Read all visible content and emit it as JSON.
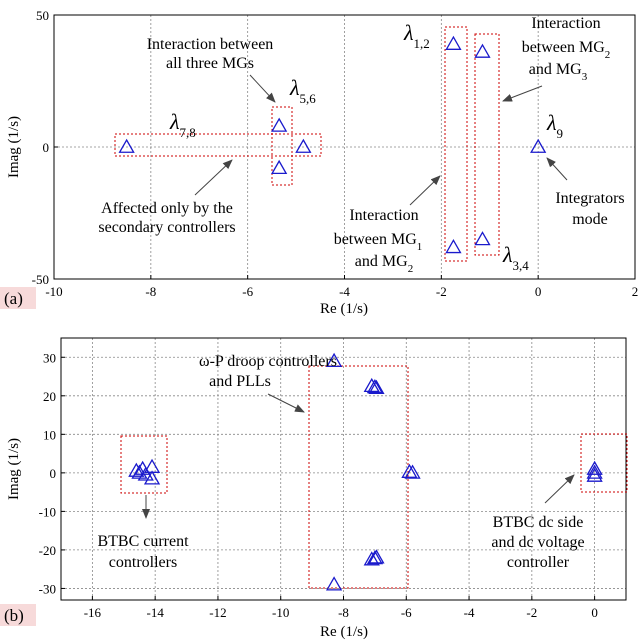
{
  "chart_data": [
    {
      "type": "scatter",
      "panel_tag": "(a)",
      "xlabel": "Re (1/s)",
      "ylabel": "Imag (1/s)",
      "xlim": [
        -10,
        2
      ],
      "ylim": [
        -50,
        50
      ],
      "xticks": [
        -10,
        -8,
        -6,
        -4,
        -2,
        0,
        2
      ],
      "yticks": [
        -50,
        0,
        50
      ],
      "grid": true,
      "marker": "triangle",
      "marker_color": "#1a1acc",
      "box_color": "#cc0000",
      "points": [
        {
          "x": -8.5,
          "y": 0
        },
        {
          "x": -5.35,
          "y": 8
        },
        {
          "x": -5.35,
          "y": -8
        },
        {
          "x": -4.85,
          "y": 0
        },
        {
          "x": -1.75,
          "y": 39
        },
        {
          "x": -1.75,
          "y": -38
        },
        {
          "x": -1.15,
          "y": 36
        },
        {
          "x": -1.15,
          "y": -35
        },
        {
          "x": 0,
          "y": 0
        }
      ],
      "eigen_labels": [
        {
          "base": "λ",
          "sub": "7,8"
        },
        {
          "base": "λ",
          "sub": "5,6"
        },
        {
          "base": "λ",
          "sub": "1,2"
        },
        {
          "base": "λ",
          "sub": "3,4"
        },
        {
          "base": "λ",
          "sub": "9"
        }
      ],
      "annotations": [
        {
          "lines": [
            "Interaction between",
            "all three MGs"
          ]
        },
        {
          "lines": [
            "Affected only by the",
            "secondary controllers"
          ]
        },
        {
          "lines": [
            "Interaction",
            "between MG",
            "and MG"
          ],
          "subs": [
            "",
            "1",
            "2"
          ]
        },
        {
          "lines": [
            "Interaction",
            "between MG",
            "and MG"
          ],
          "subs": [
            "",
            "2",
            "3"
          ]
        },
        {
          "lines": [
            "Integrators",
            "mode"
          ]
        }
      ]
    },
    {
      "type": "scatter",
      "panel_tag": "(b)",
      "xlabel": "Re (1/s)",
      "ylabel": "Imag (1/s)",
      "xlim": [
        -17,
        1
      ],
      "ylim": [
        -33,
        35
      ],
      "xticks": [
        -16,
        -14,
        -12,
        -10,
        -8,
        -6,
        -4,
        -2,
        0
      ],
      "yticks": [
        -30,
        -20,
        -10,
        0,
        10,
        20,
        30
      ],
      "grid": true,
      "marker": "triangle",
      "marker_color": "#1a1acc",
      "box_color": "#cc0000",
      "points": [
        {
          "x": -14.6,
          "y": 0.5
        },
        {
          "x": -14.4,
          "y": 1
        },
        {
          "x": -14.3,
          "y": -0.5
        },
        {
          "x": -14.5,
          "y": 0
        },
        {
          "x": -14.1,
          "y": 1.5
        },
        {
          "x": -14.1,
          "y": -1.5
        },
        {
          "x": -8.3,
          "y": 29
        },
        {
          "x": -8.3,
          "y": -29
        },
        {
          "x": -7.1,
          "y": 22.5
        },
        {
          "x": -7.0,
          "y": 22.2
        },
        {
          "x": -6.95,
          "y": 22
        },
        {
          "x": -7.1,
          "y": -22.5
        },
        {
          "x": -7.0,
          "y": -22.2
        },
        {
          "x": -6.95,
          "y": -22
        },
        {
          "x": -5.9,
          "y": 0.2
        },
        {
          "x": -5.8,
          "y": 0
        },
        {
          "x": 0,
          "y": 1
        },
        {
          "x": 0,
          "y": 0
        },
        {
          "x": 0,
          "y": -0.8
        }
      ],
      "annotations": [
        {
          "lines": [
            "ω-P droop controllers",
            "and PLLs"
          ]
        },
        {
          "lines": [
            "BTBC current",
            "controllers"
          ]
        },
        {
          "lines": [
            "BTBC dc side",
            "and dc voltage",
            "controller"
          ]
        }
      ]
    }
  ]
}
